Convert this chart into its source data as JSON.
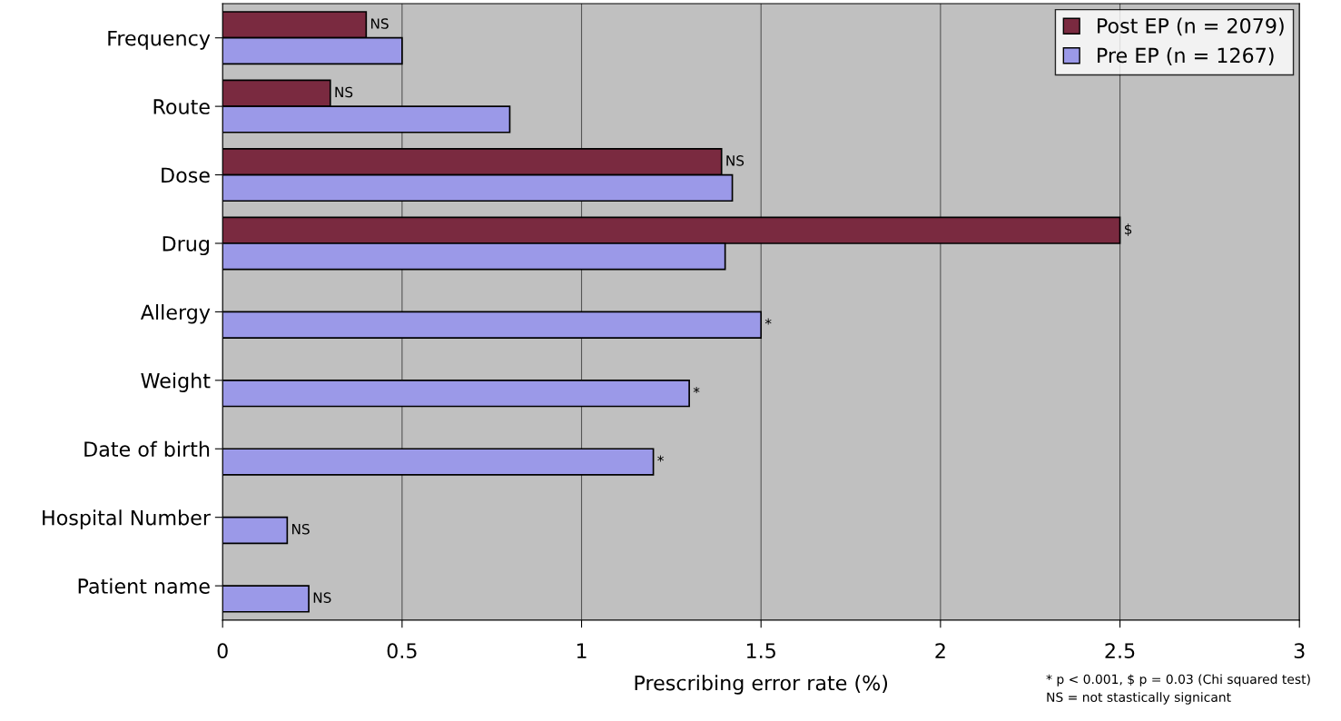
{
  "chart_data": {
    "type": "bar",
    "orientation": "horizontal",
    "xlabel": "Prescribing error rate (%)",
    "categories": [
      "Frequency",
      "Route",
      "Dose",
      "Drug",
      "Allergy",
      "Weight",
      "Date of birth",
      "Hospital Number",
      "Patient name"
    ],
    "series": [
      {
        "name": "Post EP (n = 2079)",
        "color": "#7a2a40",
        "values": [
          0.4,
          0.3,
          1.39,
          2.5,
          null,
          null,
          null,
          null,
          null
        ],
        "value_labels": [
          "NS",
          "NS",
          "NS",
          "$",
          null,
          null,
          null,
          null,
          null
        ]
      },
      {
        "name": "Pre EP (n = 1267)",
        "color": "#9b99e8",
        "values": [
          0.5,
          0.8,
          1.42,
          1.4,
          1.5,
          1.3,
          1.2,
          0.18,
          0.24
        ],
        "value_labels": [
          null,
          null,
          null,
          null,
          "*",
          "*",
          "*",
          "NS",
          "NS"
        ]
      }
    ],
    "xlim": [
      0,
      3
    ],
    "xticks": [
      0,
      0.5,
      1,
      1.5,
      2,
      2.5,
      3
    ],
    "grid": "x",
    "legend": "top right",
    "annotations": [
      "* p < 0.001, $ p = 0.03 (Chi squared test)",
      "NS = not stastically signicant"
    ]
  }
}
